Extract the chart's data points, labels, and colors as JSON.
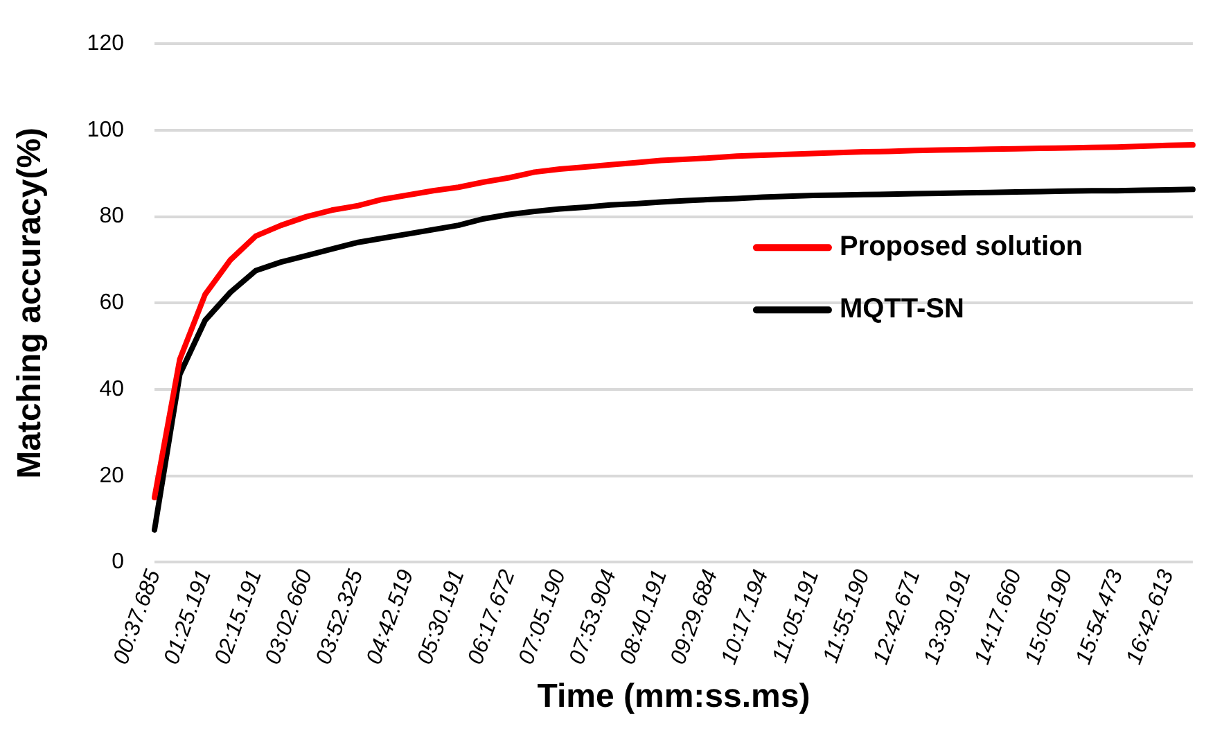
{
  "chart_data": {
    "type": "line",
    "xlabel": "Time (mm:ss.ms)",
    "ylabel": "Matching accuracy(%)",
    "categories": [
      "00:37.685",
      null,
      "01:25.191",
      null,
      "02:15.191",
      null,
      "03:02.660",
      null,
      "03:52.325",
      null,
      "04:42.519",
      null,
      "05:30.191",
      null,
      "06:17.672",
      null,
      "07:05.190",
      null,
      "07:53.904",
      null,
      "08:40.191",
      null,
      "09:29.684",
      null,
      "10:17.194",
      null,
      "11:05.191",
      null,
      "11:55.190",
      null,
      "12:42.671",
      null,
      "13:30.191",
      null,
      "14:17.660",
      null,
      "15:05.190",
      null,
      "15:54.473",
      null,
      "16:42.613",
      null
    ],
    "series": [
      {
        "name": "Proposed solution",
        "color": "#ff0000",
        "values": [
          15,
          47,
          62,
          70,
          75.5,
          78,
          80,
          81.5,
          82.5,
          84,
          85,
          86,
          86.8,
          88,
          89,
          90.3,
          91,
          91.5,
          92,
          92.5,
          93,
          93.3,
          93.6,
          94,
          94.2,
          94.4,
          94.6,
          94.8,
          95,
          95.1,
          95.3,
          95.4,
          95.5,
          95.6,
          95.7,
          95.8,
          95.9,
          96,
          96.1,
          96.3,
          96.5,
          96.6
        ]
      },
      {
        "name": "MQTT-SN",
        "color": "#000000",
        "values": [
          7.5,
          43.5,
          56,
          62.5,
          67.5,
          69.5,
          71,
          72.5,
          74,
          75,
          76,
          77,
          78,
          79.5,
          80.5,
          81.2,
          81.8,
          82.2,
          82.7,
          83,
          83.4,
          83.7,
          84,
          84.2,
          84.5,
          84.7,
          84.9,
          85,
          85.1,
          85.2,
          85.3,
          85.4,
          85.5,
          85.6,
          85.7,
          85.8,
          85.9,
          86,
          86,
          86.1,
          86.2,
          86.3
        ]
      }
    ],
    "ylim": [
      0,
      120
    ],
    "yticks": [
      0,
      20,
      40,
      60,
      80,
      100,
      120
    ],
    "grid": "y",
    "legend": "right",
    "marker": "none",
    "line_style": "solid"
  }
}
